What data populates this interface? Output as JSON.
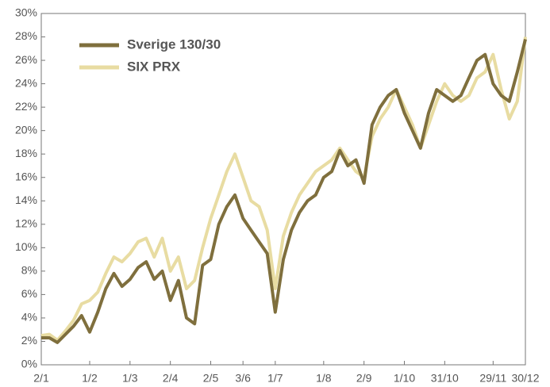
{
  "chart_data": {
    "type": "line",
    "categories": [
      "2/1",
      null,
      null,
      null,
      null,
      null,
      "1/2",
      null,
      null,
      null,
      null,
      "1/3",
      null,
      null,
      null,
      null,
      "2/4",
      null,
      null,
      null,
      null,
      "2/5",
      null,
      null,
      null,
      "3/6",
      null,
      null,
      null,
      "1/7",
      null,
      null,
      null,
      null,
      null,
      "1/8",
      null,
      null,
      null,
      null,
      "2/9",
      null,
      null,
      null,
      null,
      "1/10",
      null,
      null,
      null,
      null,
      "31/10",
      null,
      null,
      null,
      null,
      null,
      "29/11",
      null,
      null,
      null,
      "30/12"
    ],
    "series": [
      {
        "name": "Sverige 130/30",
        "color": "#7f6f3d",
        "values": [
          2.3,
          2.3,
          1.9,
          2.6,
          3.3,
          4.2,
          2.8,
          4.5,
          6.5,
          7.8,
          6.7,
          7.3,
          8.3,
          8.8,
          7.3,
          8.0,
          5.5,
          7.2,
          4.0,
          3.5,
          8.5,
          9.0,
          12.0,
          13.5,
          14.5,
          12.5,
          11.5,
          10.5,
          9.5,
          4.5,
          9.0,
          11.5,
          13.0,
          14.0,
          14.5,
          16.0,
          16.5,
          18.3,
          17.0,
          17.5,
          15.5,
          20.5,
          22.0,
          23.0,
          23.5,
          21.5,
          20.0,
          18.5,
          21.5,
          23.5,
          23.0,
          22.5,
          23.0,
          24.5,
          26.0,
          26.5,
          24.0,
          23.0,
          22.5,
          25.0,
          27.8
        ]
      },
      {
        "name": "SIX PRX",
        "color": "#e8dca2",
        "values": [
          2.5,
          2.6,
          2.1,
          2.9,
          3.8,
          5.2,
          5.5,
          6.2,
          7.8,
          9.2,
          8.8,
          9.5,
          10.5,
          10.8,
          9.2,
          10.8,
          8.0,
          9.2,
          6.5,
          7.2,
          10.0,
          12.5,
          14.5,
          16.5,
          18.0,
          16.0,
          14.0,
          13.5,
          11.5,
          6.5,
          11.0,
          13.0,
          14.5,
          15.5,
          16.5,
          17.0,
          17.5,
          18.5,
          17.5,
          16.5,
          16.0,
          19.5,
          21.0,
          22.0,
          23.5,
          22.0,
          20.5,
          18.5,
          20.5,
          22.5,
          24.0,
          23.0,
          22.5,
          23.0,
          24.5,
          25.0,
          26.5,
          23.5,
          21.0,
          22.5,
          28.0
        ]
      }
    ],
    "ylim": [
      0,
      30
    ],
    "yticks": [
      {
        "value": 0,
        "label": "0%"
      },
      {
        "value": 2,
        "label": "2%"
      },
      {
        "value": 4,
        "label": "4%"
      },
      {
        "value": 6,
        "label": "6%"
      },
      {
        "value": 8,
        "label": "8%"
      },
      {
        "value": 10,
        "label": "10%"
      },
      {
        "value": 12,
        "label": "12%"
      },
      {
        "value": 14,
        "label": "14%"
      },
      {
        "value": 16,
        "label": "16%"
      },
      {
        "value": 18,
        "label": "18%"
      },
      {
        "value": 20,
        "label": "20%"
      },
      {
        "value": 22,
        "label": "22%"
      },
      {
        "value": 24,
        "label": "24%"
      },
      {
        "value": 26,
        "label": "26%"
      },
      {
        "value": 28,
        "label": "28%"
      },
      {
        "value": 30,
        "label": "30%"
      }
    ],
    "grid": false,
    "legend": "upper left"
  }
}
